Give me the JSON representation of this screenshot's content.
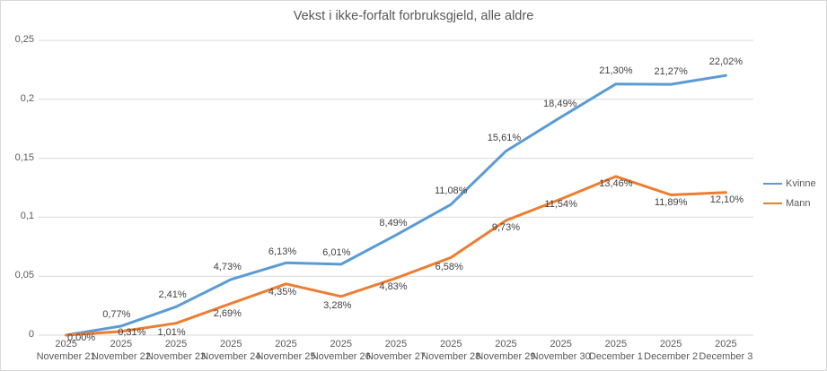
{
  "window": {
    "background": "#ffffff",
    "border_color": "#d9d9d9",
    "gridline_color": "#d9d9d9",
    "title_color": "#595959",
    "tick_label_color": "#595959",
    "data_label_color": "#404040"
  },
  "chart_data": {
    "type": "line",
    "title": "Vekst i ikke-forfalt forbruksgjeld, alle aldre",
    "grid": true,
    "legend_position": "right",
    "categories": [
      {
        "year": "2025",
        "day": "November 21"
      },
      {
        "year": "2025",
        "day": "November 22"
      },
      {
        "year": "2025",
        "day": "November 23"
      },
      {
        "year": "2025",
        "day": "November 24"
      },
      {
        "year": "2025",
        "day": "November 25"
      },
      {
        "year": "2025",
        "day": "November 26"
      },
      {
        "year": "2025",
        "day": "November 27"
      },
      {
        "year": "2025",
        "day": "November 28"
      },
      {
        "year": "2025",
        "day": "November 29"
      },
      {
        "year": "2025",
        "day": "November 30"
      },
      {
        "year": "2025",
        "day": "December 1"
      },
      {
        "year": "2025",
        "day": "December 2"
      },
      {
        "year": "2025",
        "day": "December 3"
      }
    ],
    "y_axis": {
      "min": 0,
      "max": 0.25,
      "ticks": [
        "0",
        "0,05",
        "0,1",
        "0,15",
        "0,2",
        "0,25"
      ],
      "tick_values": [
        0,
        0.05,
        0.1,
        0.15,
        0.2,
        0.25
      ]
    },
    "series": [
      {
        "name": "Kvinne",
        "color": "#5B9BD5",
        "values_percent": [
          0.0,
          0.77,
          2.41,
          4.73,
          6.13,
          6.01,
          8.49,
          11.08,
          15.61,
          18.49,
          21.3,
          21.27,
          22.02
        ],
        "labels": [
          "0,00%",
          "0,77%",
          "2,41%",
          "4,73%",
          "6,13%",
          "6,01%",
          "8,49%",
          "11,08%",
          "15,61%",
          "18,49%",
          "21,30%",
          "21,27%",
          "22,02%"
        ],
        "label_offsets": [
          [
            17,
            4
          ],
          [
            -5,
            -12
          ],
          [
            -4,
            -12
          ],
          [
            -4,
            -13
          ],
          [
            -4,
            -11
          ],
          [
            -5,
            -12
          ],
          [
            -3,
            -12
          ],
          [
            0,
            -14
          ],
          [
            -2,
            -14
          ],
          [
            -1,
            -14
          ],
          [
            0,
            -14
          ],
          [
            0,
            -13
          ],
          [
            0,
            -14
          ]
        ]
      },
      {
        "name": "Mann",
        "color": "#ED7D31",
        "values_percent": [
          0.0,
          0.31,
          1.01,
          2.69,
          4.35,
          3.28,
          4.83,
          6.58,
          9.73,
          11.54,
          13.46,
          11.89,
          12.1
        ],
        "labels": [
          "",
          "0,31%",
          "1,01%",
          "2,69%",
          "4,35%",
          "3,28%",
          "4,83%",
          "6,58%",
          "9,73%",
          "11,54%",
          "13,46%",
          "11,89%",
          "12,10%"
        ],
        "label_offsets": [
          [
            0,
            0
          ],
          [
            12,
            2
          ],
          [
            -5,
            11
          ],
          [
            -4,
            12
          ],
          [
            -4,
            10
          ],
          [
            -4,
            11
          ],
          [
            -3,
            11
          ],
          [
            -2,
            12
          ],
          [
            0,
            9
          ],
          [
            0,
            7
          ],
          [
            0,
            9
          ],
          [
            0,
            9
          ],
          [
            1,
            9
          ]
        ]
      }
    ]
  }
}
